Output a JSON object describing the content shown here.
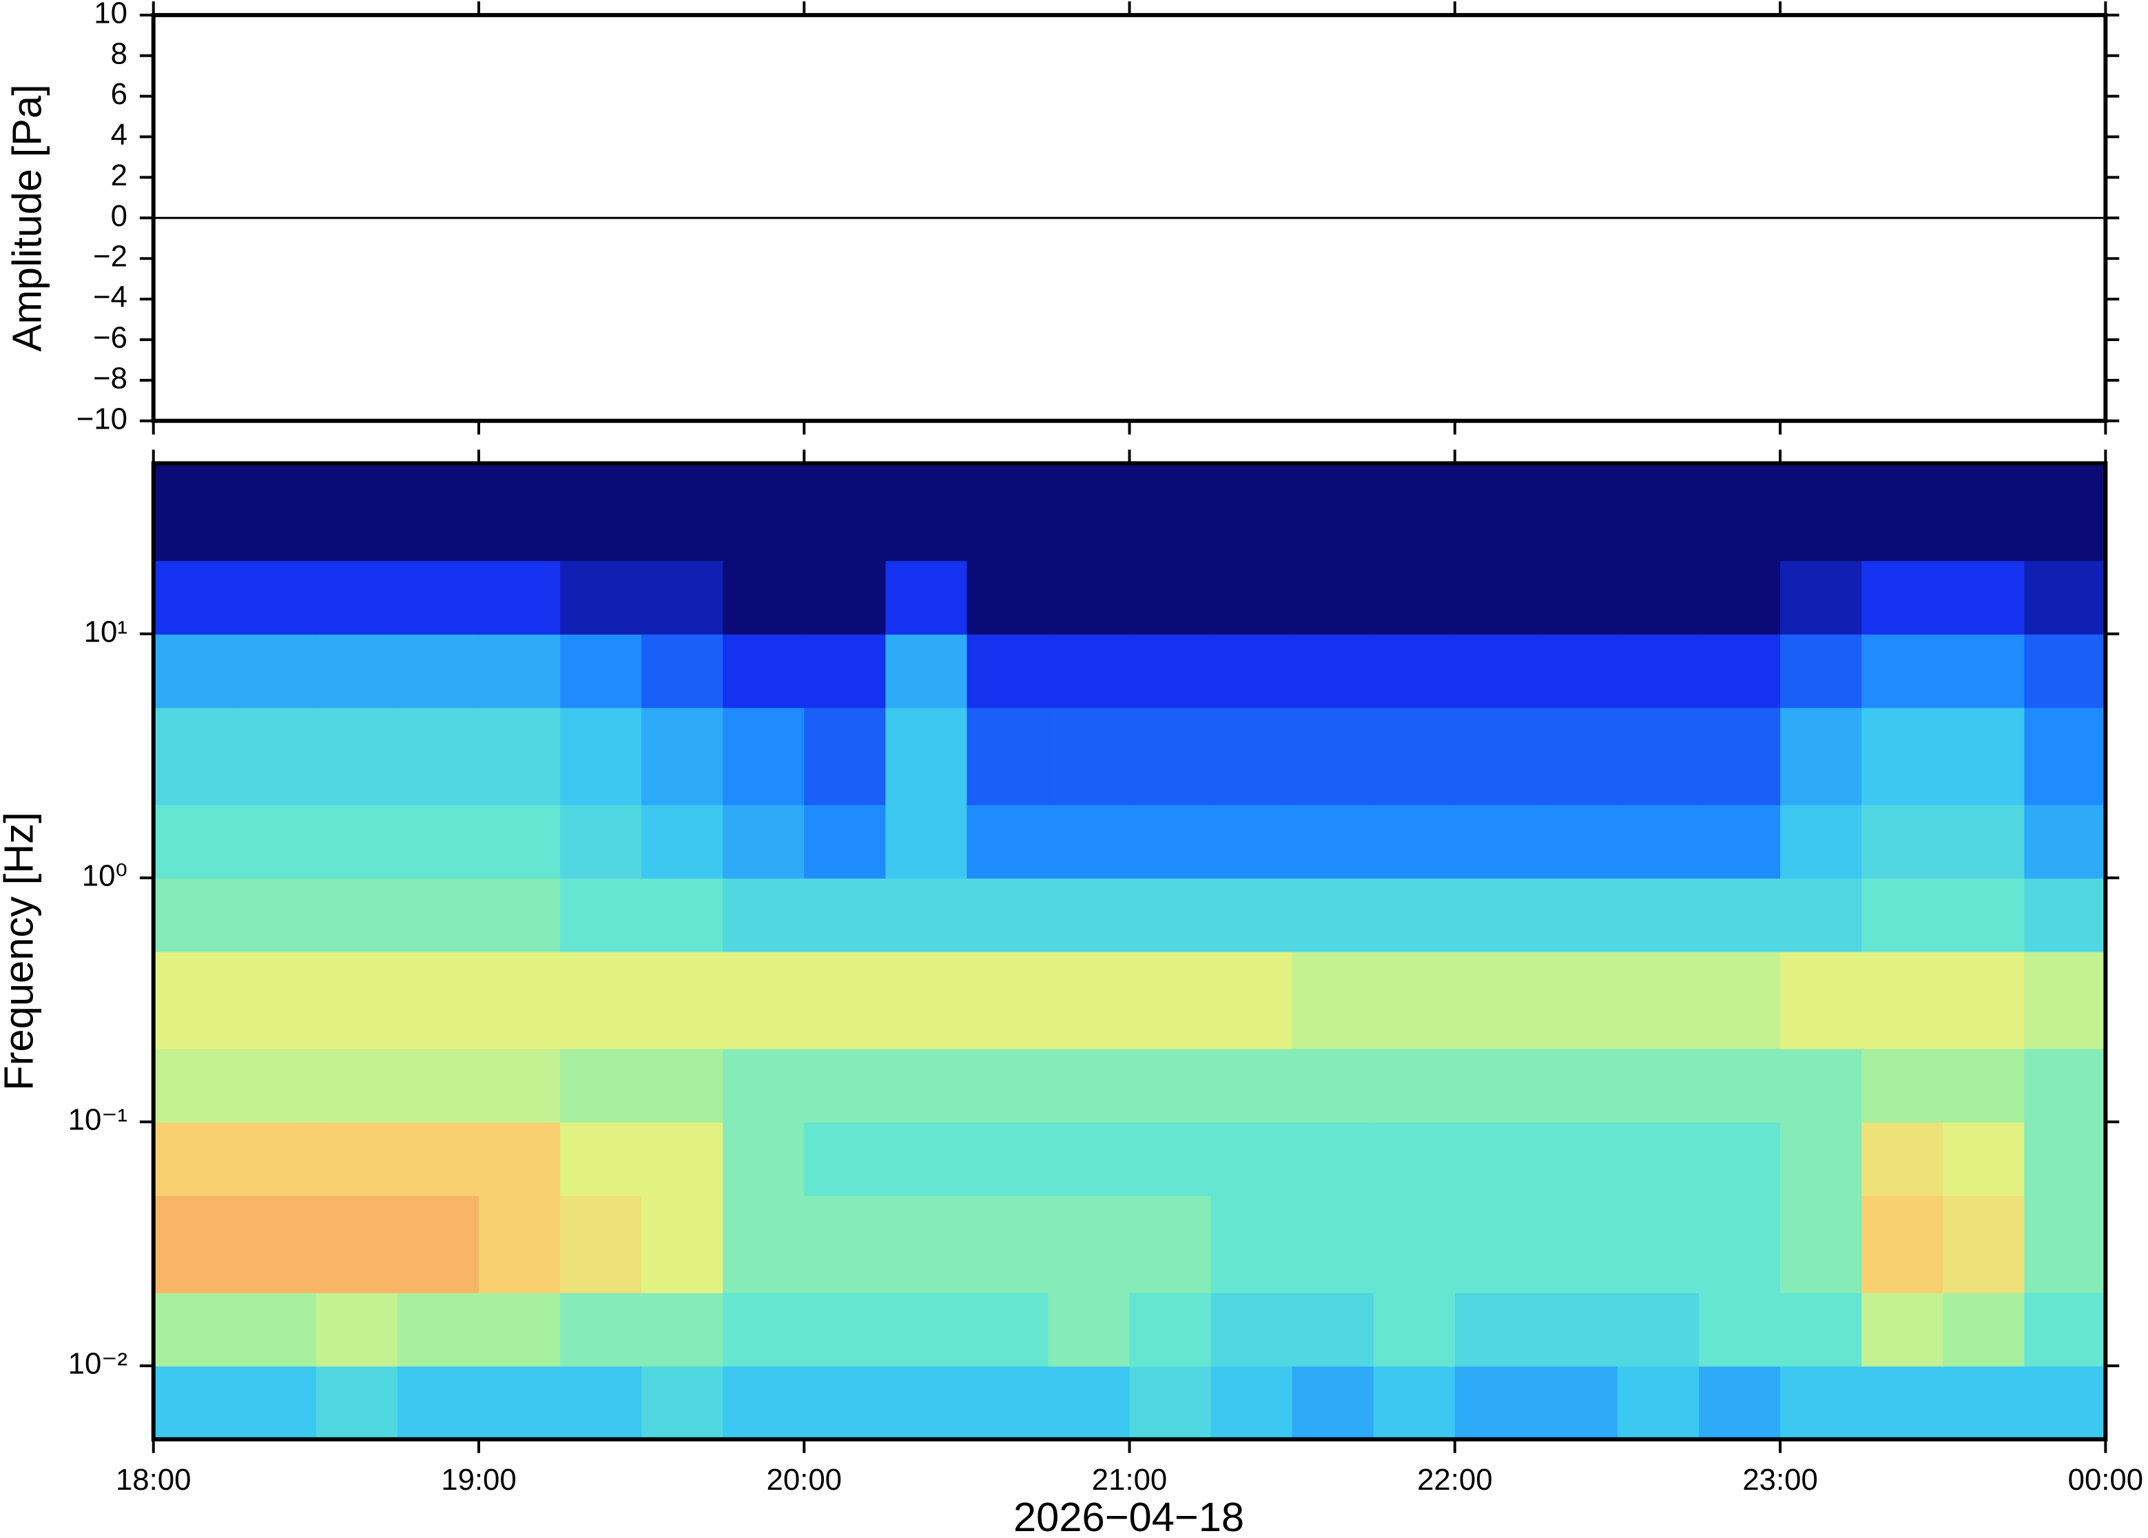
{
  "chart_data": [
    {
      "type": "line",
      "ylabel": "Amplitude [Pa]",
      "color": "#000000",
      "x": [
        "18:00",
        "19:00",
        "20:00",
        "21:00",
        "22:00",
        "23:00",
        "00:00"
      ],
      "values": [
        0,
        0,
        0,
        0,
        0,
        0,
        0
      ],
      "xlim": [
        "18:00",
        "00:00"
      ],
      "ylim": [
        -10,
        10
      ],
      "yticks": [
        {
          "value": -10,
          "label": "−10"
        },
        {
          "value": -8,
          "label": "−8"
        },
        {
          "value": -6,
          "label": "−6"
        },
        {
          "value": -4,
          "label": "−4"
        },
        {
          "value": -2,
          "label": "−2"
        },
        0,
        2,
        4,
        6,
        8,
        10
      ]
    },
    {
      "type": "heatmap",
      "ylabel": "Frequency [Hz]",
      "xlabel": "2026−04−18",
      "log_y": true,
      "xlim": [
        "18:00",
        "00:00"
      ],
      "xticks": [
        "18:00",
        "19:00",
        "20:00",
        "21:00",
        "22:00",
        "23:00",
        "00:00"
      ],
      "ylim": [
        0.005,
        50
      ],
      "yticks": [
        {
          "value": 0.01,
          "label": "10⁻²"
        },
        {
          "value": 0.1,
          "label": "10⁻¹"
        },
        {
          "value": 1,
          "label": "10⁰"
        },
        {
          "value": 10,
          "label": "10¹"
        }
      ],
      "xbins": [
        "18:00",
        "18:15",
        "18:30",
        "18:45",
        "19:00",
        "19:15",
        "19:30",
        "19:45",
        "20:00",
        "20:15",
        "20:30",
        "20:45",
        "21:00",
        "21:15",
        "21:30",
        "21:45",
        "22:00",
        "22:15",
        "22:30",
        "22:45",
        "23:00",
        "23:15",
        "23:30",
        "23:45",
        "00:00"
      ],
      "ybins": [
        0.005,
        0.01,
        0.02,
        0.05,
        0.1,
        0.2,
        0.5,
        1,
        2,
        5,
        10,
        20,
        50
      ],
      "clim": [
        0,
        8
      ],
      "colormap": [
        "#0b0b78",
        "#1432f0",
        "#1e8cff",
        "#3cc8f0",
        "#64e6d2",
        "#a6f0a0",
        "#e2f282",
        "#f8d070",
        "#f89a5a"
      ],
      "values": [
        [
          3,
          3,
          3.5,
          3,
          3,
          3,
          3.5,
          3,
          3,
          3,
          3,
          3,
          3.5,
          3,
          2.5,
          3,
          2.5,
          2.5,
          3,
          2.5,
          3,
          3,
          3,
          3
        ],
        [
          5,
          5,
          5.5,
          5,
          5,
          4.5,
          4.5,
          4,
          4,
          4,
          4,
          4.5,
          4,
          3.5,
          3.5,
          4,
          3.5,
          3.5,
          3.5,
          4,
          4,
          5.5,
          5,
          4
        ],
        [
          7.5,
          7.5,
          7.5,
          7.5,
          7,
          6.5,
          6,
          4.5,
          4.5,
          4.5,
          4.5,
          4.5,
          4.5,
          4,
          4,
          4,
          4,
          4,
          4,
          4,
          4.5,
          7,
          6.5,
          4.5
        ],
        [
          7,
          7,
          7,
          7,
          7,
          6,
          6,
          4.5,
          4,
          4,
          4,
          4,
          4,
          4,
          4,
          4,
          4,
          4,
          4,
          4,
          4.5,
          6.5,
          6,
          4.5
        ],
        [
          5.5,
          5.5,
          5.5,
          5.5,
          5.5,
          5,
          5,
          4.5,
          4.5,
          4.5,
          4.5,
          4.5,
          4.5,
          4.5,
          4.5,
          4.5,
          4.5,
          4.5,
          4.5,
          4.5,
          4.5,
          5,
          5,
          4.5
        ],
        [
          6,
          6,
          6,
          6,
          6,
          6,
          6,
          6,
          6,
          6,
          6,
          6,
          6,
          6,
          5.5,
          5.5,
          5.5,
          5.5,
          5.5,
          5.5,
          6,
          6,
          6,
          5.5
        ],
        [
          4.5,
          4.5,
          4.5,
          4.5,
          4.5,
          4,
          4,
          3.5,
          3.5,
          3.5,
          3.5,
          3.5,
          3.5,
          3.5,
          3.5,
          3.5,
          3.5,
          3.5,
          3.5,
          3.5,
          3.5,
          4,
          4,
          3.5
        ],
        [
          4,
          4,
          4,
          4,
          4,
          3.5,
          3,
          2.5,
          2,
          3,
          2,
          2,
          2,
          2,
          2,
          2,
          2,
          2,
          2,
          2,
          3,
          3.5,
          3.5,
          2.5
        ],
        [
          3.5,
          3.5,
          3.5,
          3.5,
          3.5,
          3,
          2.5,
          2,
          1.5,
          3,
          1.5,
          1.5,
          1.5,
          1.5,
          1.5,
          1.5,
          1.5,
          1.5,
          1.5,
          1.5,
          2.5,
          3,
          3,
          2
        ],
        [
          2.5,
          2.5,
          2.5,
          2.5,
          2.5,
          2,
          1.5,
          1,
          1,
          2.5,
          1,
          1,
          1,
          1,
          1,
          1,
          1,
          1,
          1,
          1,
          1.5,
          2,
          2,
          1.5
        ],
        [
          1,
          1,
          1,
          1,
          1,
          0.5,
          0.5,
          0,
          0,
          1,
          0,
          0,
          0,
          0,
          0,
          0,
          0,
          0,
          0,
          0,
          0.5,
          1,
          1,
          0.5
        ],
        [
          0,
          0,
          0,
          0,
          0,
          0,
          0,
          0,
          0,
          0,
          0,
          0,
          0,
          0,
          0,
          0,
          0,
          0,
          0,
          0,
          0,
          0,
          0,
          0
        ]
      ]
    }
  ]
}
